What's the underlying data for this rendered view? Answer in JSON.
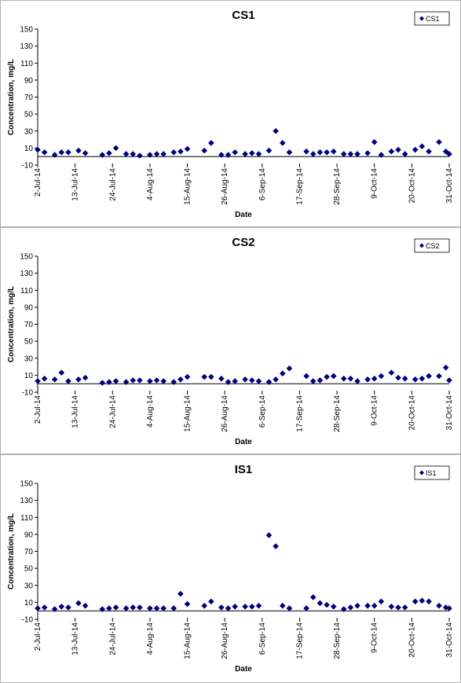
{
  "chart_data": [
    {
      "type": "scatter",
      "title": "CS1",
      "x_label": "Date",
      "y_label": "Concentration, mg/L",
      "legend": "top-right",
      "xlim": [
        "2014-07-02",
        "2014-10-31"
      ],
      "ylim": [
        -10,
        150
      ],
      "yticks": [
        -10,
        10,
        30,
        50,
        70,
        90,
        110,
        130,
        150
      ],
      "xticks": [
        {
          "value": "2014-07-02",
          "label": "2-Jul-14"
        },
        {
          "value": "2014-07-13",
          "label": "13-Jul-14"
        },
        {
          "value": "2014-07-24",
          "label": "24-Jul-14"
        },
        {
          "value": "2014-08-04",
          "label": "4-Aug-14"
        },
        {
          "value": "2014-08-15",
          "label": "15-Aug-14"
        },
        {
          "value": "2014-08-26",
          "label": "26-Aug-14"
        },
        {
          "value": "2014-09-06",
          "label": "6-Sep-14"
        },
        {
          "value": "2014-09-17",
          "label": "17-Sep-14"
        },
        {
          "value": "2014-09-28",
          "label": "28-Sep-14"
        },
        {
          "value": "2014-10-09",
          "label": "9-Oct-14"
        },
        {
          "value": "2014-10-20",
          "label": "20-Oct-14"
        },
        {
          "value": "2014-10-31",
          "label": "31-Oct-14"
        }
      ],
      "series": [
        {
          "name": "CS1",
          "color": "#000080",
          "x": [
            "2014-07-02",
            "2014-07-04",
            "2014-07-07",
            "2014-07-09",
            "2014-07-11",
            "2014-07-14",
            "2014-07-16",
            "2014-07-21",
            "2014-07-23",
            "2014-07-25",
            "2014-07-28",
            "2014-07-30",
            "2014-08-01",
            "2014-08-04",
            "2014-08-06",
            "2014-08-08",
            "2014-08-11",
            "2014-08-13",
            "2014-08-15",
            "2014-08-20",
            "2014-08-22",
            "2014-08-25",
            "2014-08-27",
            "2014-08-29",
            "2014-09-01",
            "2014-09-03",
            "2014-09-05",
            "2014-09-08",
            "2014-09-10",
            "2014-09-12",
            "2014-09-14",
            "2014-09-19",
            "2014-09-21",
            "2014-09-23",
            "2014-09-25",
            "2014-09-27",
            "2014-09-30",
            "2014-10-02",
            "2014-10-04",
            "2014-10-07",
            "2014-10-09",
            "2014-10-11",
            "2014-10-14",
            "2014-10-16",
            "2014-10-18",
            "2014-10-21",
            "2014-10-23",
            "2014-10-25",
            "2014-10-28",
            "2014-10-30",
            "2014-10-31"
          ],
          "values": [
            8,
            5,
            2,
            5,
            5,
            7,
            4,
            2,
            4,
            10,
            3,
            3,
            1,
            2,
            3,
            3,
            5,
            6,
            9,
            7,
            16,
            2,
            2,
            5,
            3,
            4,
            3,
            7,
            30,
            16,
            5,
            6,
            3,
            5,
            5,
            6,
            3,
            3,
            3,
            4,
            17,
            2,
            6,
            8,
            3,
            8,
            12,
            6,
            17,
            6,
            3
          ]
        }
      ]
    },
    {
      "type": "scatter",
      "title": "CS2",
      "x_label": "Date",
      "y_label": "Concentration, mg/L",
      "legend": "top-right",
      "xlim": [
        "2014-07-02",
        "2014-10-31"
      ],
      "ylim": [
        -10,
        150
      ],
      "yticks": [
        -10,
        10,
        30,
        50,
        70,
        90,
        110,
        130,
        150
      ],
      "xticks": [
        {
          "value": "2014-07-02",
          "label": "2-Jul-14"
        },
        {
          "value": "2014-07-13",
          "label": "13-Jul-14"
        },
        {
          "value": "2014-07-24",
          "label": "24-Jul-14"
        },
        {
          "value": "2014-08-04",
          "label": "4-Aug-14"
        },
        {
          "value": "2014-08-15",
          "label": "15-Aug-14"
        },
        {
          "value": "2014-08-26",
          "label": "26-Aug-14"
        },
        {
          "value": "2014-09-06",
          "label": "6-Sep-14"
        },
        {
          "value": "2014-09-17",
          "label": "17-Sep-14"
        },
        {
          "value": "2014-09-28",
          "label": "28-Sep-14"
        },
        {
          "value": "2014-10-09",
          "label": "9-Oct-14"
        },
        {
          "value": "2014-10-20",
          "label": "20-Oct-14"
        },
        {
          "value": "2014-10-31",
          "label": "31-Oct-14"
        }
      ],
      "series": [
        {
          "name": "CS2",
          "color": "#000080",
          "x": [
            "2014-07-02",
            "2014-07-04",
            "2014-07-07",
            "2014-07-09",
            "2014-07-11",
            "2014-07-14",
            "2014-07-16",
            "2014-07-21",
            "2014-07-23",
            "2014-07-25",
            "2014-07-28",
            "2014-07-30",
            "2014-08-01",
            "2014-08-04",
            "2014-08-06",
            "2014-08-08",
            "2014-08-11",
            "2014-08-13",
            "2014-08-15",
            "2014-08-20",
            "2014-08-22",
            "2014-08-25",
            "2014-08-27",
            "2014-08-29",
            "2014-09-01",
            "2014-09-03",
            "2014-09-05",
            "2014-09-08",
            "2014-09-10",
            "2014-09-12",
            "2014-09-14",
            "2014-09-19",
            "2014-09-21",
            "2014-09-23",
            "2014-09-25",
            "2014-09-27",
            "2014-09-30",
            "2014-10-02",
            "2014-10-04",
            "2014-10-07",
            "2014-10-09",
            "2014-10-11",
            "2014-10-14",
            "2014-10-16",
            "2014-10-18",
            "2014-10-21",
            "2014-10-23",
            "2014-10-25",
            "2014-10-28",
            "2014-10-30",
            "2014-10-31"
          ],
          "values": [
            3,
            6,
            5,
            13,
            3,
            5,
            7,
            1,
            2,
            3,
            2,
            4,
            4,
            3,
            4,
            3,
            2,
            5,
            8,
            8,
            8,
            6,
            2,
            3,
            5,
            4,
            3,
            2,
            5,
            12,
            18,
            9,
            3,
            4,
            8,
            9,
            6,
            6,
            3,
            5,
            6,
            9,
            13,
            7,
            6,
            5,
            6,
            9,
            9,
            19,
            4
          ]
        }
      ]
    },
    {
      "type": "scatter",
      "title": "IS1",
      "x_label": "Date",
      "y_label": "Concentration, mg/L",
      "legend": "top-right",
      "xlim": [
        "2014-07-02",
        "2014-10-31"
      ],
      "ylim": [
        -10,
        150
      ],
      "yticks": [
        -10,
        10,
        30,
        50,
        70,
        90,
        110,
        130,
        150
      ],
      "xticks": [
        {
          "value": "2014-07-02",
          "label": "2-Jul-14"
        },
        {
          "value": "2014-07-13",
          "label": "13-Jul-14"
        },
        {
          "value": "2014-07-24",
          "label": "24-Jul-14"
        },
        {
          "value": "2014-08-04",
          "label": "4-Aug-14"
        },
        {
          "value": "2014-08-15",
          "label": "15-Aug-14"
        },
        {
          "value": "2014-08-26",
          "label": "26-Aug-14"
        },
        {
          "value": "2014-09-06",
          "label": "6-Sep-14"
        },
        {
          "value": "2014-09-17",
          "label": "17-Sep-14"
        },
        {
          "value": "2014-09-28",
          "label": "28-Sep-14"
        },
        {
          "value": "2014-10-09",
          "label": "9-Oct-14"
        },
        {
          "value": "2014-10-20",
          "label": "20-Oct-14"
        },
        {
          "value": "2014-10-31",
          "label": "31-Oct-14"
        }
      ],
      "series": [
        {
          "name": "IS1",
          "color": "#000080",
          "x": [
            "2014-07-02",
            "2014-07-04",
            "2014-07-07",
            "2014-07-09",
            "2014-07-11",
            "2014-07-14",
            "2014-07-16",
            "2014-07-21",
            "2014-07-23",
            "2014-07-25",
            "2014-07-28",
            "2014-07-30",
            "2014-08-01",
            "2014-08-04",
            "2014-08-06",
            "2014-08-08",
            "2014-08-11",
            "2014-08-13",
            "2014-08-15",
            "2014-08-20",
            "2014-08-22",
            "2014-08-25",
            "2014-08-27",
            "2014-08-29",
            "2014-09-01",
            "2014-09-03",
            "2014-09-05",
            "2014-09-08",
            "2014-09-10",
            "2014-09-12",
            "2014-09-14",
            "2014-09-19",
            "2014-09-21",
            "2014-09-23",
            "2014-09-25",
            "2014-09-27",
            "2014-09-30",
            "2014-10-02",
            "2014-10-04",
            "2014-10-07",
            "2014-10-09",
            "2014-10-11",
            "2014-10-14",
            "2014-10-16",
            "2014-10-18",
            "2014-10-21",
            "2014-10-23",
            "2014-10-25",
            "2014-10-28",
            "2014-10-30",
            "2014-10-31"
          ],
          "values": [
            3,
            4,
            2,
            5,
            4,
            9,
            6,
            2,
            3,
            4,
            3,
            4,
            4,
            3,
            3,
            3,
            3,
            20,
            8,
            6,
            11,
            4,
            3,
            5,
            5,
            5,
            6,
            89,
            76,
            6,
            3,
            3,
            16,
            9,
            7,
            5,
            2,
            4,
            6,
            6,
            6,
            11,
            5,
            4,
            4,
            11,
            12,
            11,
            6,
            4,
            3
          ]
        }
      ]
    }
  ]
}
